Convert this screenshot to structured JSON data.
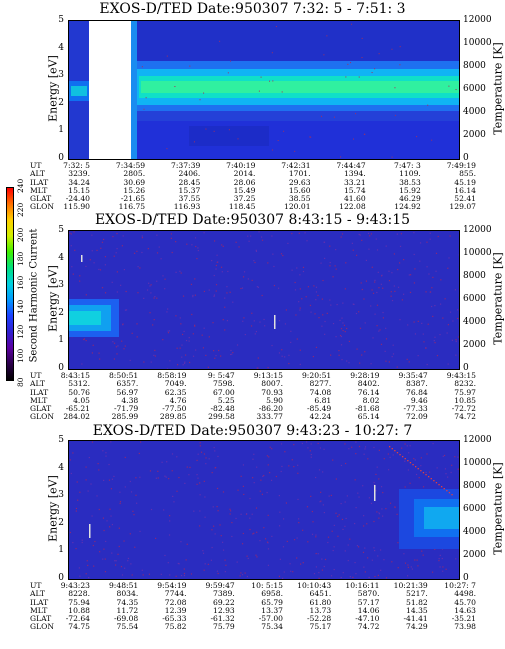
{
  "colorbar": {
    "ticks": [
      "240",
      "220",
      "200",
      "180",
      "160",
      "140",
      "120",
      "100",
      "80"
    ],
    "label": "Second Harmonic Current",
    "colors": [
      "#000000",
      "#2a004a",
      "#5a00a0",
      "#3020d0",
      "#1c40ff",
      "#0098ff",
      "#00d0e0",
      "#00e080",
      "#40f000",
      "#d0f000",
      "#ffd000",
      "#ff7000",
      "#ff0000"
    ]
  },
  "panels": [
    {
      "title": "EXOS-D/TED   Date:950307   7:32: 5 - 7:51: 3",
      "ylabel": "Energy [eV]",
      "rlabel": "Temperature [K]",
      "yticks": [
        "5",
        "4",
        "3",
        "2",
        "1",
        "0"
      ],
      "rticks": [
        "12000",
        "10000",
        "8000",
        "6000",
        "4000",
        "2000",
        "0"
      ],
      "ephem_labels": [
        "UT",
        "ALT",
        "ILAT",
        "MLT",
        "GLAT",
        "GLON"
      ],
      "ephem_cols": [
        [
          "7:32: 5",
          "3239.",
          "34.24",
          "15.15",
          "-24.40",
          "115.90"
        ],
        [
          "7:34:59",
          "2805.",
          "30.69",
          "15.26",
          "-21.65",
          "116.75"
        ],
        [
          "7:37:39",
          "2406.",
          "28.45",
          "15.37",
          "37.55",
          "116.93"
        ],
        [
          "7:40:19",
          "2014.",
          "28.06",
          "15.49",
          "37.25",
          "118.45"
        ],
        [
          "7:42:31",
          "1701.",
          "29.63",
          "15.60",
          "38.55",
          "120.01"
        ],
        [
          "7:44:47",
          "1394.",
          "33.21",
          "15.74",
          "41.60",
          "122.08"
        ],
        [
          "7:47: 3",
          "1109.",
          "38.53",
          "15.92",
          "46.29",
          "124.92"
        ],
        [
          "7:49:19",
          "855.",
          "45.19",
          "16.14",
          "52.41",
          "129.07"
        ]
      ]
    },
    {
      "title": "EXOS-D/TED   Date:950307   8:43:15 - 9:43:15",
      "ylabel": "Energy [eV]",
      "rlabel": "Temperature [K]",
      "yticks": [
        "5",
        "4",
        "3",
        "2",
        "1",
        "0"
      ],
      "rticks": [
        "12000",
        "10000",
        "8000",
        "6000",
        "4000",
        "2000",
        "0"
      ],
      "ephem_labels": [
        "UT",
        "ALT",
        "ILAT",
        "MLT",
        "GLAT",
        "GLON"
      ],
      "ephem_cols": [
        [
          "8:43:15",
          "5312.",
          "50.76",
          "4.05",
          "-65.21",
          "284.02"
        ],
        [
          "8:50:51",
          "6357.",
          "56.97",
          "4.38",
          "-71.79",
          "285.99"
        ],
        [
          "8:58:19",
          "7049.",
          "62.35",
          "4.76",
          "-77.50",
          "289.85"
        ],
        [
          "9: 5:47",
          "7598.",
          "67.00",
          "5.25",
          "-82.48",
          "299.58"
        ],
        [
          "9:13:15",
          "8007.",
          "70.93",
          "5.90",
          "-86.20",
          "333.77"
        ],
        [
          "9:20:51",
          "8277.",
          "74.08",
          "6.81",
          "-85.49",
          "42.24"
        ],
        [
          "9:28:19",
          "8402.",
          "76.14",
          "8.02",
          "-81.68",
          "65.14"
        ],
        [
          "9:35:47",
          "8387.",
          "76.84",
          "9.46",
          "-77.33",
          "72.09"
        ],
        [
          "9:43:15",
          "8232.",
          "75.97",
          "10.85",
          "-72.72",
          "74.72"
        ]
      ]
    },
    {
      "title": "EXOS-D/TED   Date:950307   9:43:23 - 10:27: 7",
      "ylabel": "Energy [eV]",
      "rlabel": "Temperature [K]",
      "yticks": [
        "5",
        "4",
        "3",
        "2",
        "1",
        "0"
      ],
      "rticks": [
        "12000",
        "10000",
        "8000",
        "6000",
        "4000",
        "2000",
        "0"
      ],
      "ephem_labels": [
        "UT",
        "ALT",
        "ILAT",
        "MLT",
        "GLAT",
        "GLON"
      ],
      "ephem_cols": [
        [
          "9:43:23",
          "8228.",
          "75.94",
          "10.88",
          "-72.64",
          "74.75"
        ],
        [
          "9:48:51",
          "8034.",
          "74.35",
          "11.72",
          "-69.08",
          "75.54"
        ],
        [
          "9:54:19",
          "7744.",
          "72.08",
          "12.39",
          "-65.33",
          "75.82"
        ],
        [
          "9:59:47",
          "7389.",
          "69.22",
          "12.93",
          "-61.32",
          "75.79"
        ],
        [
          "10: 5:15",
          "6958.",
          "65.79",
          "13.37",
          "-57.00",
          "75.34"
        ],
        [
          "10:10:43",
          "6451.",
          "61.80",
          "13.73",
          "-52.28",
          "75.17"
        ],
        [
          "10:16:11",
          "5870.",
          "57.17",
          "14.06",
          "-47.10",
          "74.72"
        ],
        [
          "10:21:39",
          "5217.",
          "51.82",
          "14.35",
          "-41.41",
          "74.29"
        ],
        [
          "10:27: 7",
          "4498.",
          "45.70",
          "14.63",
          "-35.21",
          "73.98"
        ]
      ]
    }
  ],
  "chart_data": [
    {
      "type": "heatmap",
      "title": "EXOS-D/TED   Date:950307   7:32: 5 - 7:51: 3",
      "ylabel": "Energy [eV]",
      "y2label": "Temperature [K]",
      "ylim": [
        0,
        5
      ],
      "y2lim": [
        0,
        12000
      ],
      "x": [
        "7:32: 5",
        "7:34:59",
        "7:37:39",
        "7:40:19",
        "7:42:31",
        "7:44:47",
        "7:47: 3",
        "7:49:19"
      ],
      "colorbar_range": [
        80,
        240
      ],
      "features": "data gap ~7:33-7:34:30; enhanced band 2-3 eV across interval"
    },
    {
      "type": "heatmap",
      "title": "EXOS-D/TED   Date:950307   8:43:15 - 9:43:15",
      "ylabel": "Energy [eV]",
      "y2label": "Temperature [K]",
      "ylim": [
        0,
        5
      ],
      "y2lim": [
        0,
        12000
      ],
      "x": [
        "8:43:15",
        "8:50:51",
        "8:58:19",
        "9: 5:47",
        "9:13:15",
        "9:20:51",
        "9:28:19",
        "9:35:47",
        "9:43:15"
      ],
      "colorbar_range": [
        80,
        240
      ]
    },
    {
      "type": "heatmap",
      "title": "EXOS-D/TED   Date:950307   9:43:23 - 10:27: 7",
      "ylabel": "Energy [eV]",
      "y2label": "Temperature [K]",
      "ylim": [
        0,
        5
      ],
      "y2lim": [
        0,
        12000
      ],
      "x": [
        "9:43:23",
        "9:48:51",
        "9:54:19",
        "9:59:47",
        "10: 5:15",
        "10:10:43",
        "10:16:11",
        "10:21:39",
        "10:27: 7"
      ],
      "colorbar_range": [
        80,
        240
      ]
    }
  ]
}
